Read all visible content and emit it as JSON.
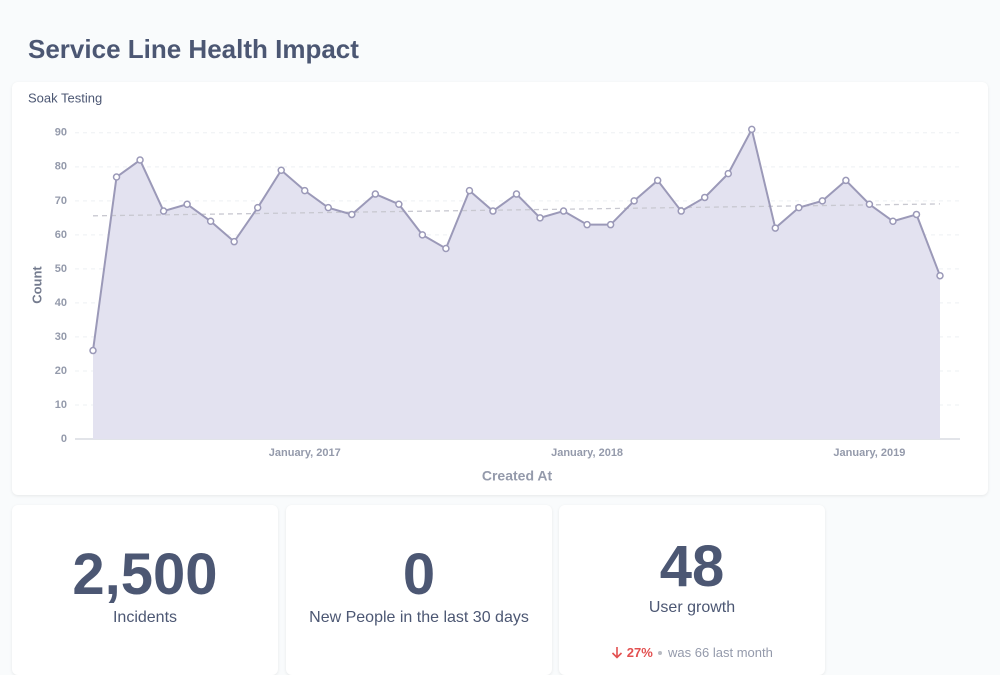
{
  "header": {
    "title": "Service Line Health Impact"
  },
  "chart_data": {
    "type": "area",
    "title": "Soak Testing",
    "categories": [
      null,
      null,
      null,
      null,
      null,
      null,
      null,
      null,
      null,
      "January, 2017",
      null,
      null,
      null,
      null,
      null,
      null,
      null,
      null,
      null,
      null,
      null,
      "January, 2018",
      null,
      null,
      null,
      null,
      null,
      null,
      null,
      null,
      null,
      null,
      null,
      "January, 2019",
      null,
      null,
      null
    ],
    "values": [
      26,
      77,
      82,
      67,
      69,
      64,
      58,
      68,
      79,
      73,
      68,
      66,
      72,
      69,
      60,
      56,
      73,
      67,
      72,
      65,
      67,
      63,
      63,
      70,
      76,
      67,
      71,
      78,
      91,
      62,
      68,
      70,
      76,
      69,
      64,
      66,
      48
    ],
    "trend": [
      65.6,
      69.1
    ],
    "color": "#9b99b8",
    "fill": "#e3e2f0",
    "ylim": [
      0,
      92
    ],
    "yticks": [
      0,
      10,
      20,
      30,
      40,
      50,
      60,
      70,
      80,
      90
    ],
    "grid": true,
    "ylabel": "Count",
    "xlabel": "Created At"
  },
  "cards": [
    {
      "value": "2,500",
      "label": "Incidents"
    },
    {
      "value": 0,
      "label": "New People in the last 30 days"
    },
    {
      "value": 48,
      "label": "User growth",
      "change": "27%",
      "previous": "was 66",
      "period": "last month"
    }
  ]
}
